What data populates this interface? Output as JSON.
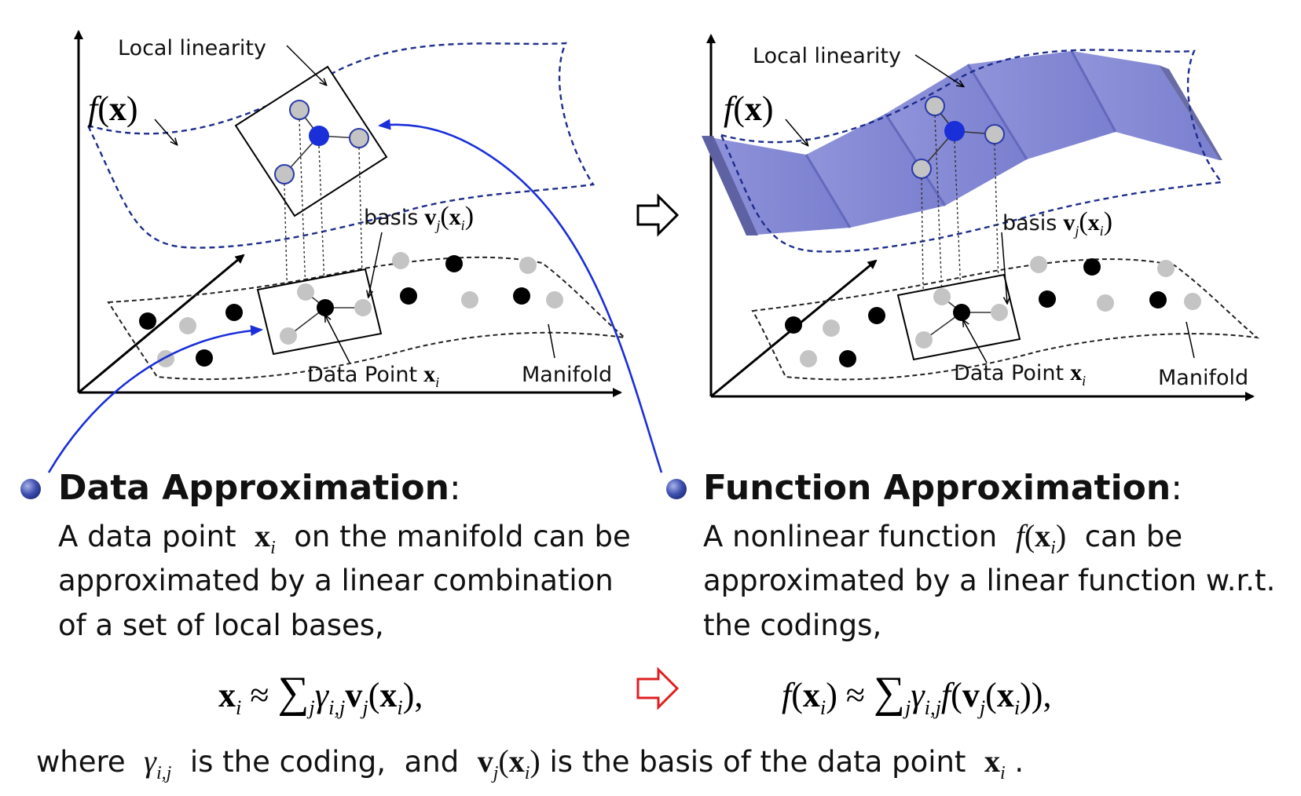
{
  "left_panel": {
    "local_linearity": "Local linearity",
    "function_label": "f(x)",
    "basis_label": "basis",
    "data_point_label": "Data Point",
    "manifold_label": "Manifold"
  },
  "right_panel": {
    "local_linearity": "Local linearity",
    "function_label": "f(x)",
    "basis_label": "basis",
    "data_point_label": "Data Point",
    "manifold_label": "Manifold"
  },
  "data_approximation": {
    "heading": "Data Approximation",
    "line1_prefix": "A data point",
    "line1_suffix": "on the manifold can be",
    "line2": "approximated by a linear combination",
    "line3": "of a set of local bases,"
  },
  "function_approximation": {
    "heading": "Function Approximation",
    "line1_prefix": "A nonlinear function",
    "line1_suffix": "can be",
    "line2": "approximated by a linear function w.r.t.",
    "line3": "the codings,"
  },
  "footer": {
    "prefix": "where",
    "middle1": "is the coding,",
    "middle2": "and",
    "suffix": "is the basis of the data point"
  },
  "colors": {
    "blue": "#1a2fd8",
    "dark_blue_dash": "#1e2d8c",
    "surface": "#7d82d2",
    "gray_point": "#c4c4c4",
    "red_arrow": "#e02020"
  }
}
